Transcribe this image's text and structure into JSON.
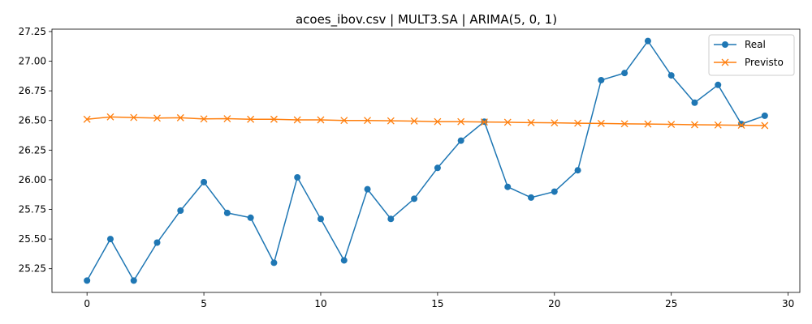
{
  "chart_data": {
    "type": "line",
    "title": "acoes_ibov.csv | MULT3.SA | ARIMA(5, 0, 1)",
    "xlabel": "",
    "ylabel": "",
    "xlim": [
      -1.5,
      30.5
    ],
    "ylim": [
      25.05,
      27.27
    ],
    "xticks": [
      0,
      5,
      10,
      15,
      20,
      25,
      30
    ],
    "yticks": [
      25.25,
      25.5,
      25.75,
      26.0,
      26.25,
      26.5,
      26.75,
      27.0,
      27.25
    ],
    "ytick_labels": [
      "25.25",
      "25.50",
      "25.75",
      "26.00",
      "26.25",
      "26.50",
      "26.75",
      "27.00",
      "27.25"
    ],
    "grid": false,
    "legend_position": "top-right",
    "x": [
      0,
      1,
      2,
      3,
      4,
      5,
      6,
      7,
      8,
      9,
      10,
      11,
      12,
      13,
      14,
      15,
      16,
      17,
      18,
      19,
      20,
      21,
      22,
      23,
      24,
      25,
      26,
      27,
      28,
      29
    ],
    "series": [
      {
        "name": "Real",
        "color": "#1f77b4",
        "marker": "circle",
        "values": [
          25.15,
          25.5,
          25.15,
          25.47,
          25.74,
          25.98,
          25.72,
          25.68,
          25.3,
          26.02,
          25.67,
          25.32,
          25.92,
          25.67,
          25.84,
          26.1,
          26.33,
          26.49,
          25.94,
          25.85,
          25.9,
          26.08,
          26.84,
          26.9,
          27.17,
          26.88,
          26.65,
          26.8,
          26.47,
          26.54
        ]
      },
      {
        "name": "Previsto",
        "color": "#ff7f0e",
        "marker": "x",
        "values": [
          26.51,
          26.53,
          26.525,
          26.52,
          26.523,
          26.513,
          26.515,
          26.51,
          26.51,
          26.505,
          26.505,
          26.5,
          26.5,
          26.497,
          26.495,
          26.49,
          26.49,
          26.487,
          26.485,
          26.482,
          26.48,
          26.477,
          26.475,
          26.472,
          26.47,
          26.467,
          26.464,
          26.462,
          26.46,
          26.457
        ]
      }
    ]
  }
}
